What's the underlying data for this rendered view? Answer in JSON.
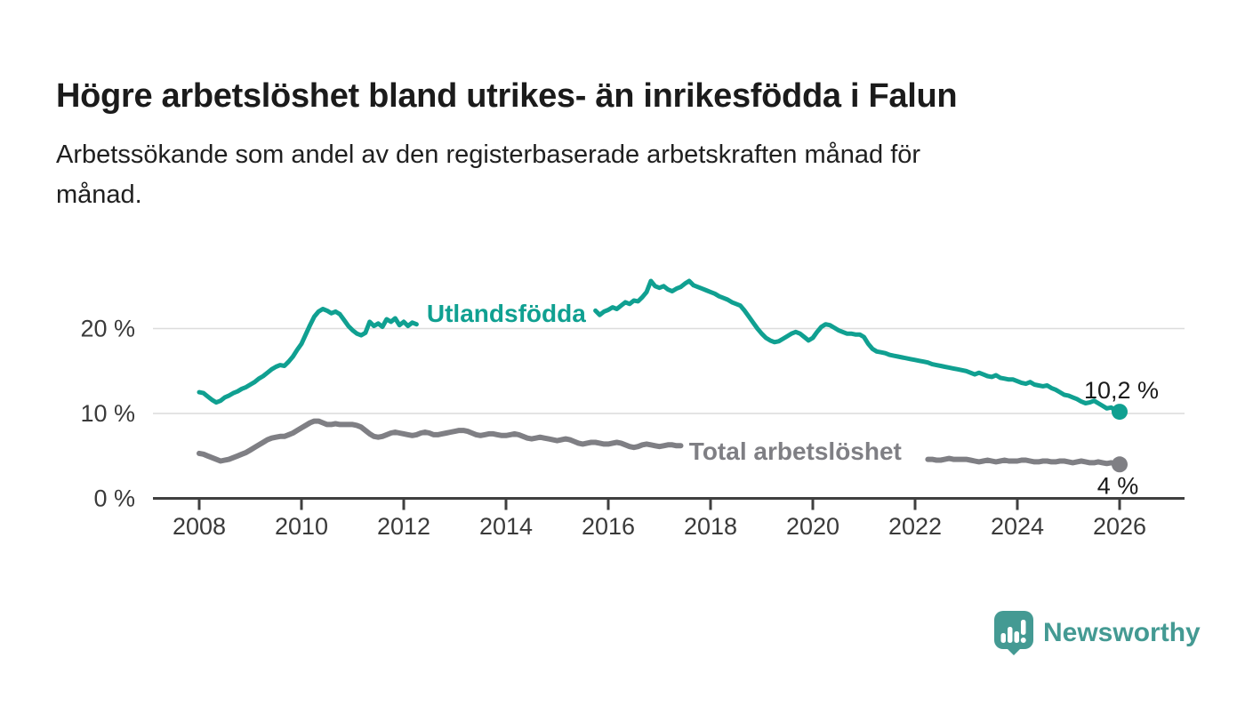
{
  "title": "Högre arbetslöshet bland utrikes- än inrikesfödda i Falun",
  "subtitle_lines": [
    "Arbetssökande som andel av den registerbaserade arbetskraften månad för",
    "månad."
  ],
  "branding": {
    "name": "Newsworthy",
    "color": "#449a93",
    "icon": "bar-chart-speech-bubble"
  },
  "chart_data": {
    "type": "line",
    "title": "",
    "xlabel": "",
    "ylabel": "",
    "x_start_year": 2008,
    "x_interval_months": 1,
    "x_tick_years": [
      2008,
      2010,
      2012,
      2014,
      2016,
      2018,
      2020,
      2022,
      2024,
      2026
    ],
    "y_ticks": [
      {
        "value": 0,
        "label": "0 %"
      },
      {
        "value": 10,
        "label": "10 %"
      },
      {
        "value": 20,
        "label": "20 %"
      }
    ],
    "ylim": [
      0,
      27.5
    ],
    "grid": "horizontal",
    "grid_color": "#dcdcdc",
    "axis_color": "#3f3f3f",
    "axis_text_color": "#3a3a3a",
    "value_label_color": "#1a1a1a",
    "legend_position": "inline-on-line",
    "series": [
      {
        "name": "Utlandsfödda",
        "color": "#10a091",
        "end_label": "10,2 %",
        "end_value": 10.2,
        "label_anchor": {
          "year": 2012.45,
          "value": 21.8
        },
        "values": [
          12.5,
          12.4,
          12.0,
          11.6,
          11.3,
          11.5,
          11.9,
          12.1,
          12.4,
          12.6,
          12.9,
          13.1,
          13.4,
          13.7,
          14.1,
          14.4,
          14.8,
          15.2,
          15.5,
          15.7,
          15.6,
          16.1,
          16.7,
          17.5,
          18.2,
          19.3,
          20.4,
          21.4,
          22.0,
          22.3,
          22.1,
          21.8,
          22.0,
          21.7,
          21.0,
          20.3,
          19.8,
          19.4,
          19.2,
          19.5,
          20.8,
          20.3,
          20.6,
          20.2,
          21.1,
          20.8,
          21.2,
          20.4,
          20.8,
          20.3,
          20.7,
          20.5,
          null,
          null,
          null,
          null,
          null,
          null,
          null,
          null,
          null,
          null,
          null,
          null,
          null,
          null,
          null,
          null,
          null,
          null,
          null,
          null,
          null,
          null,
          null,
          null,
          null,
          null,
          null,
          null,
          null,
          null,
          null,
          null,
          null,
          null,
          null,
          null,
          null,
          null,
          null,
          null,
          null,
          22.1,
          21.6,
          22.0,
          22.2,
          22.5,
          22.3,
          22.7,
          23.1,
          22.9,
          23.3,
          23.2,
          23.7,
          24.3,
          25.6,
          25.0,
          24.8,
          25.0,
          24.6,
          24.4,
          24.7,
          24.9,
          25.3,
          25.6,
          25.1,
          24.9,
          24.7,
          24.5,
          24.3,
          24.1,
          23.8,
          23.6,
          23.4,
          23.1,
          22.9,
          22.7,
          22.1,
          21.4,
          20.7,
          20.0,
          19.4,
          18.9,
          18.6,
          18.4,
          18.5,
          18.8,
          19.1,
          19.4,
          19.6,
          19.4,
          19.0,
          18.6,
          18.9,
          19.6,
          20.2,
          20.5,
          20.4,
          20.1,
          19.8,
          19.6,
          19.4,
          19.4,
          19.3,
          19.3,
          19.0,
          18.2,
          17.6,
          17.3,
          17.2,
          17.1,
          16.9,
          16.8,
          16.7,
          16.6,
          16.5,
          16.4,
          16.3,
          16.2,
          16.1,
          16.0,
          15.8,
          15.7,
          15.6,
          15.5,
          15.4,
          15.3,
          15.2,
          15.1,
          15.0,
          14.8,
          14.6,
          14.8,
          14.6,
          14.4,
          14.3,
          14.5,
          14.2,
          14.1,
          14.0,
          14.0,
          13.8,
          13.6,
          13.5,
          13.7,
          13.4,
          13.3,
          13.2,
          13.3,
          13.0,
          12.8,
          12.5,
          12.2,
          12.1,
          11.9,
          11.7,
          11.4,
          11.2,
          11.3,
          11.5,
          11.2,
          10.9,
          10.6,
          10.7,
          10.4,
          10.2
        ]
      },
      {
        "name": "Total arbetslöshet",
        "color": "#7f7f84",
        "end_label": "4 %",
        "end_value": 4.0,
        "label_anchor": {
          "year": 2017.58,
          "value": 5.55
        },
        "values": [
          5.3,
          5.2,
          5.0,
          4.8,
          4.6,
          4.4,
          4.5,
          4.6,
          4.8,
          5.0,
          5.2,
          5.4,
          5.7,
          6.0,
          6.3,
          6.6,
          6.9,
          7.1,
          7.2,
          7.3,
          7.3,
          7.5,
          7.7,
          8.0,
          8.3,
          8.6,
          8.9,
          9.1,
          9.1,
          8.9,
          8.7,
          8.7,
          8.8,
          8.7,
          8.7,
          8.7,
          8.7,
          8.6,
          8.4,
          8.0,
          7.6,
          7.3,
          7.2,
          7.3,
          7.5,
          7.7,
          7.8,
          7.7,
          7.6,
          7.5,
          7.4,
          7.5,
          7.7,
          7.8,
          7.7,
          7.5,
          7.5,
          7.6,
          7.7,
          7.8,
          7.9,
          8.0,
          8.0,
          7.9,
          7.7,
          7.5,
          7.4,
          7.5,
          7.6,
          7.6,
          7.5,
          7.4,
          7.4,
          7.5,
          7.6,
          7.5,
          7.3,
          7.1,
          7.0,
          7.1,
          7.2,
          7.1,
          7.0,
          6.9,
          6.8,
          6.9,
          7.0,
          6.9,
          6.7,
          6.5,
          6.4,
          6.5,
          6.6,
          6.6,
          6.5,
          6.4,
          6.4,
          6.5,
          6.6,
          6.5,
          6.3,
          6.1,
          6.0,
          6.1,
          6.3,
          6.4,
          6.3,
          6.2,
          6.1,
          6.2,
          6.3,
          6.3,
          6.2,
          6.2,
          null,
          null,
          null,
          null,
          null,
          null,
          null,
          null,
          null,
          null,
          null,
          null,
          null,
          null,
          null,
          null,
          null,
          null,
          null,
          null,
          null,
          null,
          null,
          null,
          null,
          null,
          null,
          null,
          null,
          null,
          null,
          null,
          null,
          null,
          null,
          null,
          null,
          null,
          null,
          null,
          null,
          null,
          null,
          null,
          null,
          null,
          null,
          null,
          null,
          null,
          null,
          null,
          null,
          null,
          null,
          null,
          null,
          4.6,
          4.6,
          4.5,
          4.5,
          4.6,
          4.7,
          4.6,
          4.6,
          4.6,
          4.6,
          4.5,
          4.4,
          4.3,
          4.4,
          4.5,
          4.4,
          4.3,
          4.4,
          4.5,
          4.4,
          4.4,
          4.4,
          4.5,
          4.5,
          4.4,
          4.3,
          4.3,
          4.4,
          4.4,
          4.3,
          4.3,
          4.4,
          4.4,
          4.3,
          4.2,
          4.3,
          4.4,
          4.3,
          4.2,
          4.2,
          4.3,
          4.2,
          4.1,
          4.2,
          4.1,
          4.0
        ]
      }
    ]
  }
}
